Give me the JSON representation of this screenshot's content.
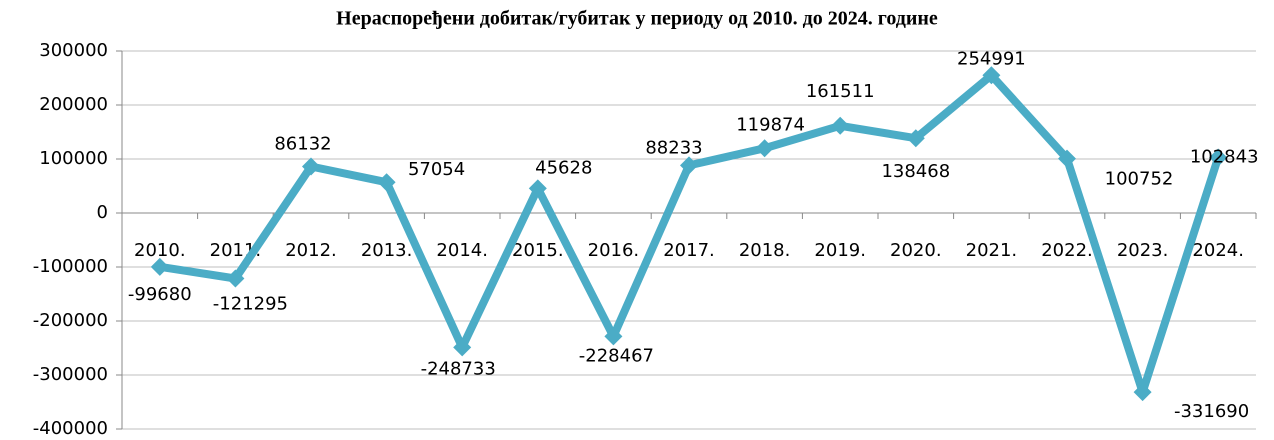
{
  "chart_data": {
    "type": "line",
    "title": "Нераспоређени добитак/губитак у периоду од 2010. до 2024. године",
    "categories": [
      "2010.",
      "2011.",
      "2012.",
      "2013.",
      "2014.",
      "2015.",
      "2016.",
      "2017.",
      "2018.",
      "2019.",
      "2020.",
      "2021.",
      "2022.",
      "2023.",
      "2024."
    ],
    "series": [
      {
        "name": "Нераспоређени добитак/губитак",
        "color": "#4bacc6",
        "values": [
          -99680,
          -121295,
          86132,
          57054,
          -248733,
          45628,
          -228467,
          88233,
          119874,
          161511,
          138468,
          254991,
          100752,
          -331690,
          102843
        ]
      }
    ],
    "ylim": [
      -400000,
      300000
    ],
    "yticks": [
      -400000,
      -300000,
      -200000,
      -100000,
      0,
      100000,
      200000,
      300000
    ],
    "grid": true
  }
}
